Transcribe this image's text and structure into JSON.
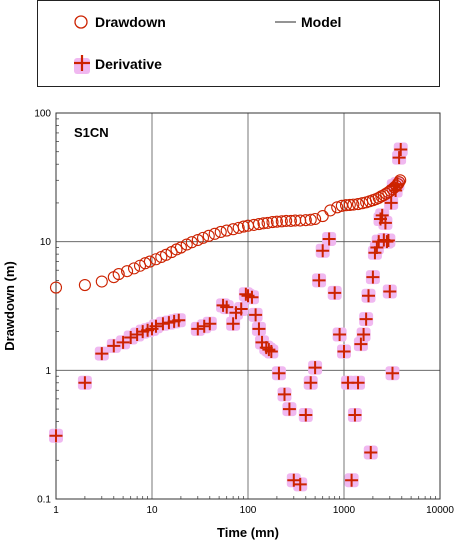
{
  "legend": {
    "drawdown_label": "Drawdown",
    "model_label": "Model",
    "derivative_label": "Derivative"
  },
  "chart_data": {
    "type": "scatter",
    "title": "S1CN",
    "xlabel": "Time (mn)",
    "ylabel": "Drawdown (m)",
    "x_scale": "log",
    "y_scale": "log",
    "xlim": [
      1,
      10000
    ],
    "ylim": [
      0.1,
      100
    ],
    "grid": true,
    "legend_position": "top",
    "x_tick_labels": [
      "1",
      "10",
      "100",
      "1000",
      "10000"
    ],
    "y_tick_labels": [
      "0.1",
      "1",
      "10",
      "100"
    ],
    "colors": {
      "marker": "#cc2200",
      "derivative_shadow": "#f0b8f0",
      "model_line": "#555555"
    },
    "series": [
      {
        "name": "Drawdown",
        "marker": "circle",
        "x": [
          1,
          2,
          3,
          4,
          4.5,
          5.5,
          6.5,
          7.5,
          8.5,
          9.5,
          11,
          12.5,
          14,
          16,
          18,
          20,
          23,
          26,
          30,
          34,
          39,
          45,
          52,
          60,
          70,
          80,
          90,
          100,
          115,
          130,
          145,
          160,
          180,
          200,
          225,
          250,
          280,
          310,
          350,
          400,
          450,
          500,
          600,
          720,
          850,
          950,
          1050,
          1150,
          1250,
          1400,
          1550,
          1700,
          1850,
          2000,
          2150,
          2300,
          2450,
          2600,
          2750,
          2900,
          3050,
          3200,
          3350,
          3500,
          3650,
          3750,
          3850
        ],
        "y": [
          4.4,
          4.6,
          4.9,
          5.3,
          5.6,
          5.9,
          6.2,
          6.5,
          6.8,
          7.0,
          7.3,
          7.6,
          7.9,
          8.3,
          8.7,
          9.0,
          9.5,
          9.9,
          10.3,
          10.7,
          11.1,
          11.5,
          11.9,
          12.2,
          12.5,
          12.8,
          13.1,
          13.3,
          13.5,
          13.7,
          13.9,
          14.0,
          14.2,
          14.3,
          14.4,
          14.5,
          14.5,
          14.6,
          14.6,
          14.7,
          14.8,
          15.0,
          15.8,
          17.5,
          18.5,
          19.0,
          19.2,
          19.3,
          19.4,
          19.6,
          19.9,
          20.2,
          20.6,
          21.0,
          21.4,
          21.9,
          22.5,
          23.0,
          23.6,
          24.2,
          24.9,
          25.6,
          26.4,
          27.2,
          28.0,
          29.0,
          30.0
        ]
      },
      {
        "name": "Derivative",
        "marker": "plus",
        "x": [
          1,
          2,
          3,
          4,
          5,
          6,
          7,
          8,
          9,
          10,
          11,
          13,
          15,
          17,
          19,
          30,
          35,
          40,
          55,
          60,
          70,
          75,
          85,
          95,
          100,
          110,
          120,
          130,
          140,
          155,
          165,
          175,
          210,
          240,
          270,
          300,
          350,
          400,
          450,
          500,
          550,
          600,
          700,
          800,
          900,
          1000,
          1100,
          1200,
          1300,
          1400,
          1500,
          1600,
          1700,
          1800,
          1900,
          2000,
          2100,
          2200,
          2300,
          2400,
          2500,
          2600,
          2700,
          2800,
          2900,
          3000,
          3100,
          3200,
          3300,
          3450,
          3600,
          3750,
          3900
        ],
        "y": [
          0.31,
          0.8,
          1.35,
          1.55,
          1.65,
          1.8,
          1.9,
          2.0,
          2.05,
          2.1,
          2.2,
          2.3,
          2.35,
          2.4,
          2.45,
          2.1,
          2.2,
          2.3,
          3.2,
          3.1,
          2.3,
          2.8,
          3.0,
          3.9,
          3.8,
          3.7,
          2.7,
          2.1,
          1.65,
          1.5,
          1.45,
          1.4,
          0.95,
          0.65,
          0.5,
          0.14,
          0.13,
          0.45,
          0.8,
          1.05,
          5.0,
          8.5,
          10.5,
          4.0,
          1.9,
          1.4,
          0.8,
          0.14,
          0.45,
          0.8,
          1.6,
          1.9,
          2.5,
          3.8,
          0.23,
          5.3,
          8.2,
          9.0,
          10.0,
          15.0,
          16.0,
          10.3,
          14.0,
          10.0,
          10.2,
          4.1,
          20.0,
          0.95,
          27.0,
          25.0,
          28.0,
          45.0,
          52.0
        ]
      }
    ]
  }
}
